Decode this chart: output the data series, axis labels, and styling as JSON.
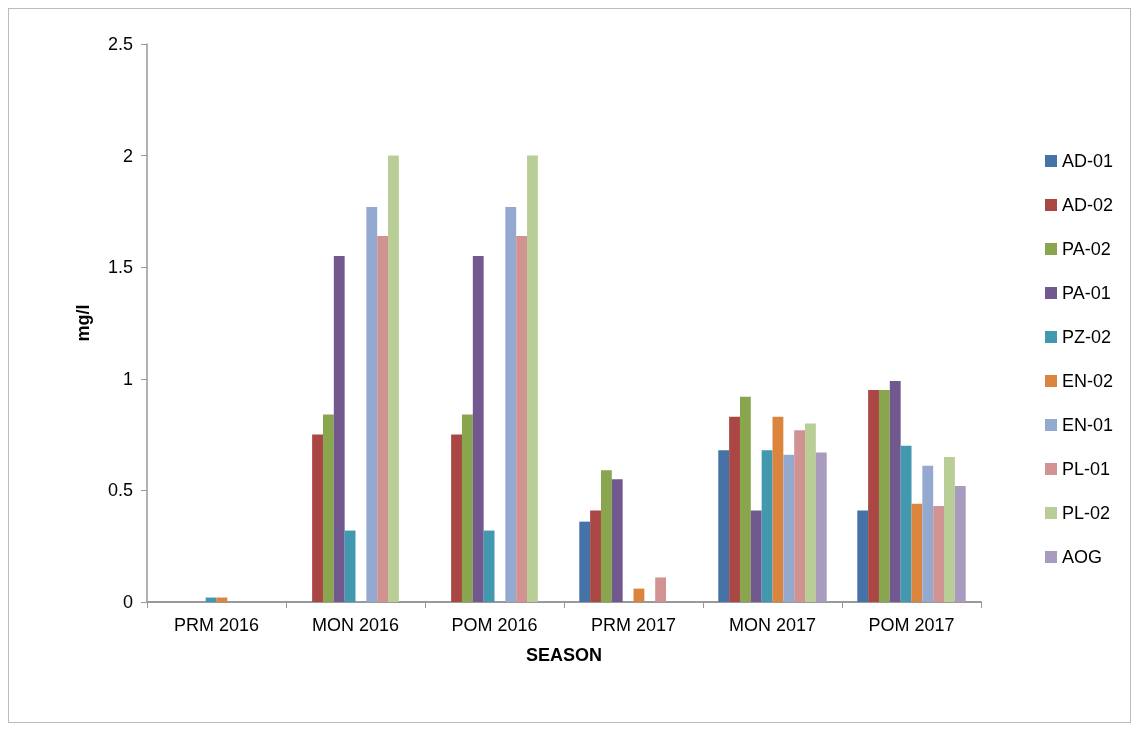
{
  "chart_data": {
    "type": "bar",
    "xlabel": "SEASON",
    "ylabel": "mg/l",
    "categories": [
      "PRM 2016",
      "MON 2016",
      "POM 2016",
      "PRM 2017",
      "MON 2017",
      "POM 2017"
    ],
    "series": [
      {
        "name": "AD-01",
        "color": "#4572a7",
        "values": [
          0,
          0,
          0,
          0.36,
          0.68,
          0.41
        ]
      },
      {
        "name": "AD-02",
        "color": "#aa4643",
        "values": [
          0,
          0.75,
          0.75,
          0.41,
          0.83,
          0.95
        ]
      },
      {
        "name": "PA-02",
        "color": "#89a54e",
        "values": [
          0,
          0.84,
          0.84,
          0.59,
          0.92,
          0.95
        ]
      },
      {
        "name": "PA-01",
        "color": "#71588f",
        "values": [
          0,
          1.55,
          1.55,
          0.55,
          0.41,
          0.99
        ]
      },
      {
        "name": "PZ-02",
        "color": "#4198af",
        "values": [
          0.02,
          0.32,
          0.32,
          0,
          0.68,
          0.7
        ]
      },
      {
        "name": "EN-02",
        "color": "#db843d",
        "values": [
          0.02,
          0,
          0,
          0.06,
          0.83,
          0.44
        ]
      },
      {
        "name": "EN-01",
        "color": "#93a9cf",
        "values": [
          0,
          1.77,
          1.77,
          0,
          0.66,
          0.61
        ]
      },
      {
        "name": "PL-01",
        "color": "#d19392",
        "values": [
          0,
          1.64,
          1.64,
          0.11,
          0.77,
          0.43
        ]
      },
      {
        "name": "PL-02",
        "color": "#b9cd96",
        "values": [
          0,
          2.0,
          2.0,
          0,
          0.8,
          0.65
        ]
      },
      {
        "name": "AOG",
        "color": "#a99bbd",
        "values": [
          0,
          0,
          0,
          0,
          0.67,
          0.52
        ]
      }
    ],
    "ylim": [
      0,
      2.5
    ],
    "yticks": [
      0,
      0.5,
      1,
      1.5,
      2,
      2.5
    ],
    "grid": false,
    "legend": "right"
  }
}
